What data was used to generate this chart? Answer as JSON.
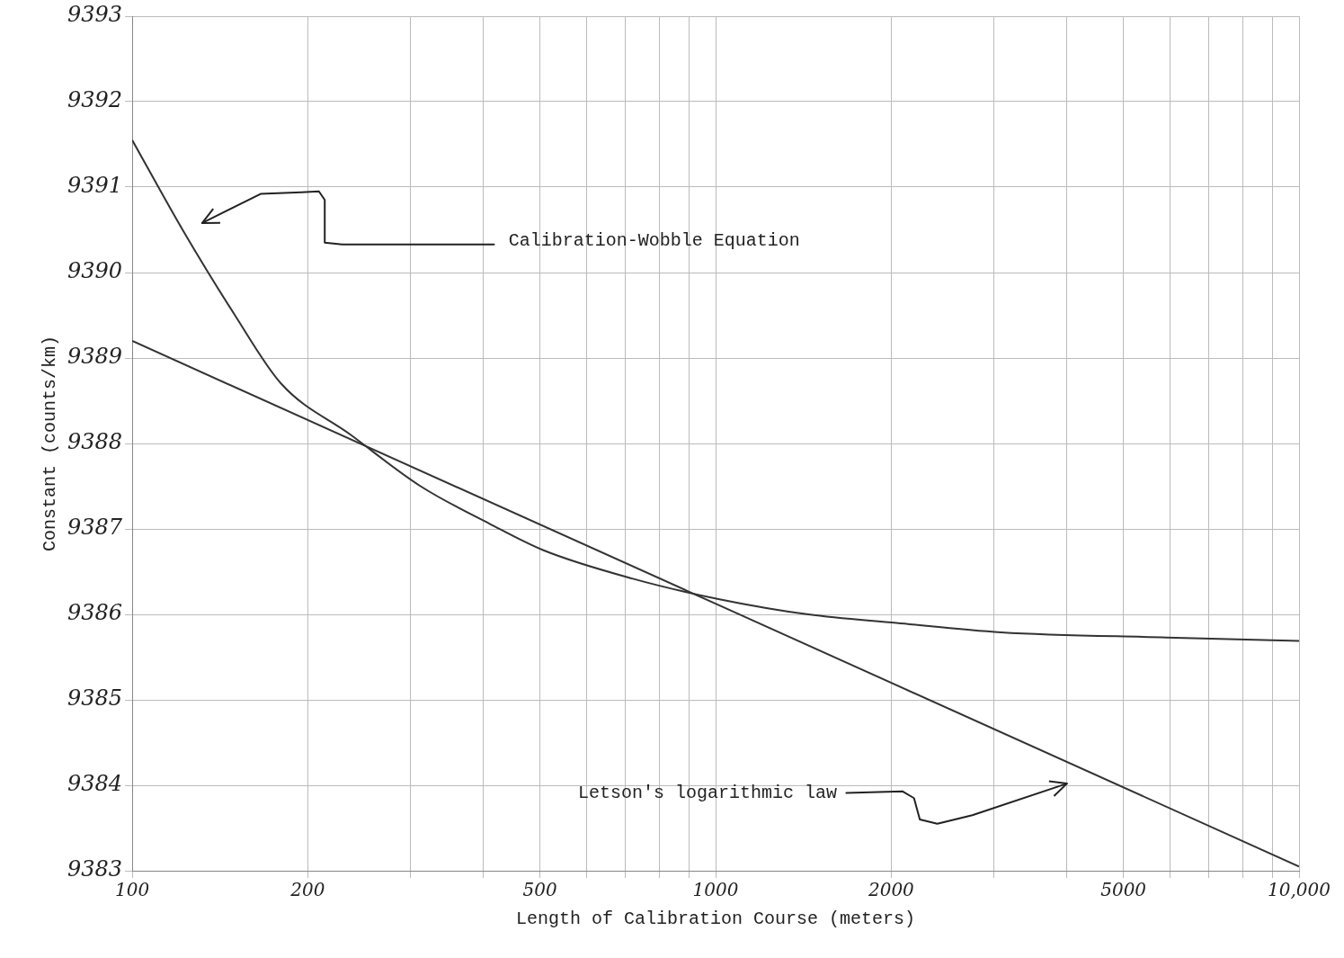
{
  "chart_data": {
    "type": "line",
    "xlabel": "Length of Calibration Course (meters)",
    "ylabel": "Constant (counts/km)",
    "log": "x",
    "xlim": [
      100,
      10000
    ],
    "ylim": [
      9383,
      9393
    ],
    "xticks": [
      100,
      200,
      {
        "value": 300,
        "label": null
      },
      {
        "value": 400,
        "label": null
      },
      500,
      {
        "value": 600,
        "label": null
      },
      {
        "value": 700,
        "label": null
      },
      {
        "value": 800,
        "label": null
      },
      {
        "value": 900,
        "label": null
      },
      1000,
      2000,
      {
        "value": 3000,
        "label": null
      },
      {
        "value": 4000,
        "label": null
      },
      5000,
      {
        "value": 6000,
        "label": null
      },
      {
        "value": 7000,
        "label": null
      },
      {
        "value": 8000,
        "label": null
      },
      {
        "value": 9000,
        "label": null
      },
      {
        "value": 10000,
        "label": "10,000"
      }
    ],
    "yticks": [
      9383,
      9384,
      9385,
      9386,
      9387,
      9388,
      9389,
      9390,
      9391,
      9392,
      9393
    ],
    "grid": true,
    "legend": false,
    "marker": "none",
    "line_style": "solid",
    "series": [
      {
        "color": "#333333",
        "x": [
          100,
          122,
          150,
          180,
          237,
          312,
          410,
          507,
          719,
          1011,
          1442,
          2042,
          3085,
          5930,
          10000
        ],
        "values": [
          9391.55,
          9390.5,
          9389.5,
          9388.7,
          9388.1,
          9387.5,
          9387.06,
          9386.75,
          9386.42,
          9386.18,
          9386.0,
          9385.9,
          9385.79,
          9385.73,
          9385.69
        ]
      },
      {
        "color": "#333333",
        "x": [
          100,
          10000
        ],
        "values": [
          9389.2,
          9383.05
        ]
      }
    ],
    "annotations": [
      "Calibration-Wobble Equation",
      "Letson's logarithmic law"
    ]
  }
}
